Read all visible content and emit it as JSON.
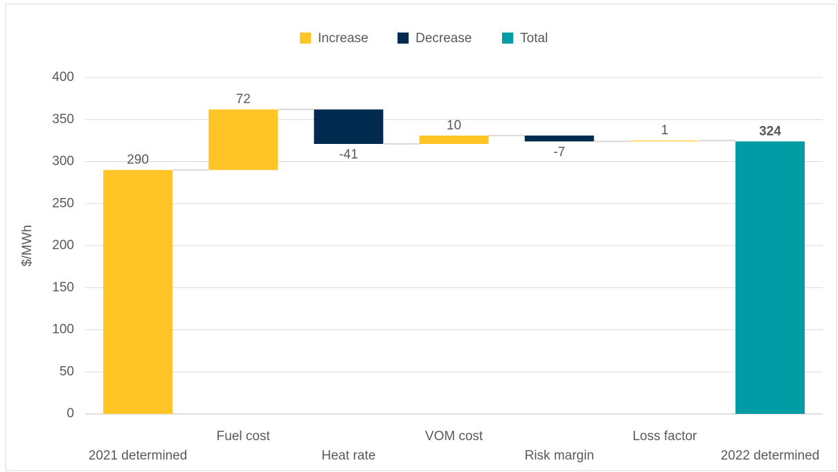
{
  "chart_data": {
    "type": "waterfall",
    "y_axis_label": "$/MWh",
    "categories": [
      "2021 determined",
      "Fuel cost",
      "Heat rate",
      "VOM cost",
      "Risk margin",
      "Loss factor",
      "2022 determined"
    ],
    "series": [
      {
        "name": "Increase",
        "color": "#ffc425",
        "values": [
          290,
          72,
          null,
          10,
          null,
          1,
          null
        ]
      },
      {
        "name": "Decrease",
        "color": "#002b4f",
        "values": [
          null,
          null,
          -41,
          null,
          -7,
          null,
          null
        ]
      },
      {
        "name": "Total",
        "color": "#009ca6",
        "values": [
          null,
          null,
          null,
          null,
          null,
          null,
          324
        ]
      }
    ],
    "ylim": [
      0,
      400
    ],
    "yticks": [
      0,
      50,
      100,
      150,
      200,
      250,
      300,
      350,
      400
    ],
    "grid": true,
    "legend": "top"
  }
}
